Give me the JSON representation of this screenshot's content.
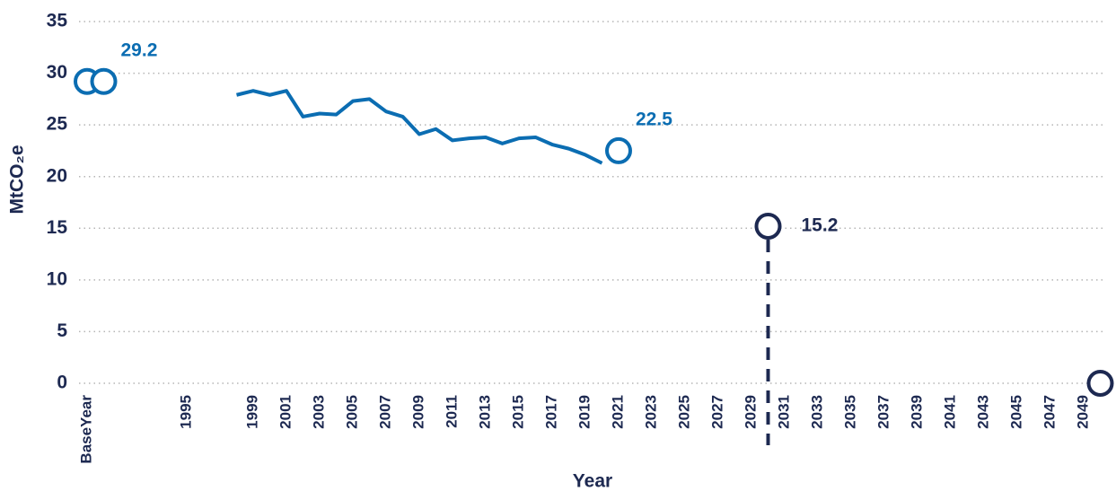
{
  "chart_data": {
    "type": "line",
    "y_label": "MtCO₂e",
    "x_label": "Year",
    "ylim": [
      0,
      35
    ],
    "yticks": [
      0,
      5,
      10,
      15,
      20,
      25,
      30,
      35
    ],
    "grid": true,
    "categories": [
      "BaseYear",
      null,
      null,
      null,
      null,
      null,
      "1995",
      null,
      null,
      null,
      "1999",
      null,
      "2001",
      null,
      "2003",
      null,
      "2005",
      null,
      "2007",
      null,
      "2009",
      null,
      "2011",
      null,
      "2013",
      null,
      "2015",
      null,
      "2017",
      null,
      "2019",
      null,
      "2021",
      null,
      "2023",
      null,
      "2025",
      null,
      "2027",
      null,
      "2029",
      null,
      "2031",
      null,
      "2033",
      null,
      "2035",
      null,
      "2037",
      null,
      "2039",
      null,
      "2041",
      null,
      "2043",
      null,
      "2045",
      null,
      "2047",
      null,
      "2049",
      null
    ],
    "series": [
      {
        "style": "line",
        "color": "#0b6db2",
        "values": [
          null,
          null,
          null,
          null,
          null,
          null,
          null,
          null,
          null,
          27.9,
          28.3,
          27.9,
          28.3,
          25.8,
          26.1,
          26.0,
          27.3,
          27.5,
          26.3,
          25.8,
          24.1,
          24.6,
          23.5,
          23.7,
          23.8,
          23.2,
          23.7,
          23.8,
          23.1,
          22.7,
          22.1,
          21.3,
          null,
          null,
          null,
          null,
          null,
          null,
          null,
          null,
          null,
          null,
          null,
          null,
          null,
          null,
          null,
          null,
          null,
          null,
          null,
          null,
          null,
          null,
          null,
          null,
          null,
          null,
          null,
          null,
          null,
          null
        ]
      },
      {
        "style": "marker",
        "color": "#0b6db2",
        "values": [
          29.2,
          29.2,
          null,
          null,
          null,
          null,
          null,
          null,
          null,
          null,
          null,
          null,
          null,
          null,
          null,
          null,
          null,
          null,
          null,
          null,
          null,
          null,
          null,
          null,
          null,
          null,
          null,
          null,
          null,
          null,
          null,
          null,
          22.5,
          null,
          null,
          null,
          null,
          null,
          null,
          null,
          null,
          null,
          null,
          null,
          null,
          null,
          null,
          null,
          null,
          null,
          null,
          null,
          null,
          null,
          null,
          null,
          null,
          null,
          null,
          null,
          null,
          null
        ],
        "value_labels": [
          null,
          "29.2",
          null,
          null,
          null,
          null,
          null,
          null,
          null,
          null,
          null,
          null,
          null,
          null,
          null,
          null,
          null,
          null,
          null,
          null,
          null,
          null,
          null,
          null,
          null,
          null,
          null,
          null,
          null,
          null,
          null,
          null,
          "22.5",
          null,
          null,
          null,
          null,
          null,
          null,
          null,
          null,
          null,
          null,
          null,
          null,
          null,
          null,
          null,
          null,
          null,
          null,
          null,
          null,
          null,
          null,
          null,
          null,
          null,
          null,
          null,
          null,
          null
        ]
      },
      {
        "style": "marker",
        "color": "#1d2951",
        "drop_line": true,
        "values": [
          null,
          null,
          null,
          null,
          null,
          null,
          null,
          null,
          null,
          null,
          null,
          null,
          null,
          null,
          null,
          null,
          null,
          null,
          null,
          null,
          null,
          null,
          null,
          null,
          null,
          null,
          null,
          null,
          null,
          null,
          null,
          null,
          null,
          null,
          null,
          null,
          null,
          null,
          null,
          null,
          null,
          15.2,
          null,
          null,
          null,
          null,
          null,
          null,
          null,
          null,
          null,
          null,
          null,
          null,
          null,
          null,
          null,
          null,
          null,
          null,
          null,
          null
        ],
        "value_labels": [
          null,
          null,
          null,
          null,
          null,
          null,
          null,
          null,
          null,
          null,
          null,
          null,
          null,
          null,
          null,
          null,
          null,
          null,
          null,
          null,
          null,
          null,
          null,
          null,
          null,
          null,
          null,
          null,
          null,
          null,
          null,
          null,
          null,
          null,
          null,
          null,
          null,
          null,
          null,
          null,
          null,
          "15.2",
          null,
          null,
          null,
          null,
          null,
          null,
          null,
          null,
          null,
          null,
          null,
          null,
          null,
          null,
          null,
          null,
          null,
          null,
          null,
          null
        ]
      },
      {
        "style": "marker",
        "color": "#1d2951",
        "values": [
          null,
          null,
          null,
          null,
          null,
          null,
          null,
          null,
          null,
          null,
          null,
          null,
          null,
          null,
          null,
          null,
          null,
          null,
          null,
          null,
          null,
          null,
          null,
          null,
          null,
          null,
          null,
          null,
          null,
          null,
          null,
          null,
          null,
          null,
          null,
          null,
          null,
          null,
          null,
          null,
          null,
          null,
          null,
          null,
          null,
          null,
          null,
          null,
          null,
          null,
          null,
          null,
          null,
          null,
          null,
          null,
          null,
          null,
          null,
          null,
          null,
          0
        ]
      }
    ]
  }
}
